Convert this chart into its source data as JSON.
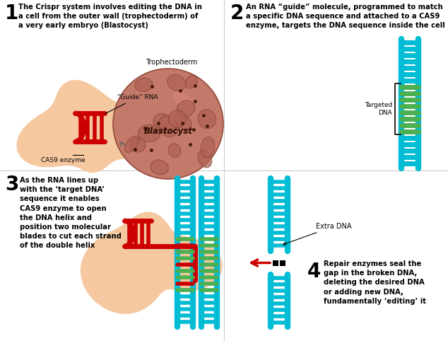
{
  "bg_color": "#ffffff",
  "cell_color": "#f5c8a0",
  "blastocyst_outer": "#c47a6b",
  "blastocyst_inner": "#b06050",
  "blastocyst_cell": "#a85848",
  "dna_blue": "#00bcd4",
  "dna_green": "#4caf50",
  "dna_red": "#cc0000",
  "label1": "The Crispr system involves editing the DNA in\na cell from the outer wall (trophectoderm) of\na very early embryo (Blastocyst)",
  "label2": "An RNA “guide” molecule, programmed to match\na specific DNA sequence and attached to a CAS9\nenzyme, targets the DNA sequence inside the cell",
  "label3": "As the RNA lines up\nwith the ‘target DNA’\nsequence it enables\nCAS9 enzyme to open\nthe DNA helix and\nposition two molecular\nblades to cut each strand\nof the double helix",
  "label4": "Repair enzymes seal the\ngap in the broken DNA,\ndeleting the desired DNA\nor adding new DNA,\nfundamentally ‘editing’ it",
  "trophectoderm_label": "Trophectoderm",
  "blastocyst_label": "Blastocyst",
  "guide_rna_label": "“Guide” RNA",
  "cas9_label": "CAS9 enzyme",
  "targeted_dna_label": "Targeted\nDNA",
  "extra_dna_label": "Extra DNA"
}
